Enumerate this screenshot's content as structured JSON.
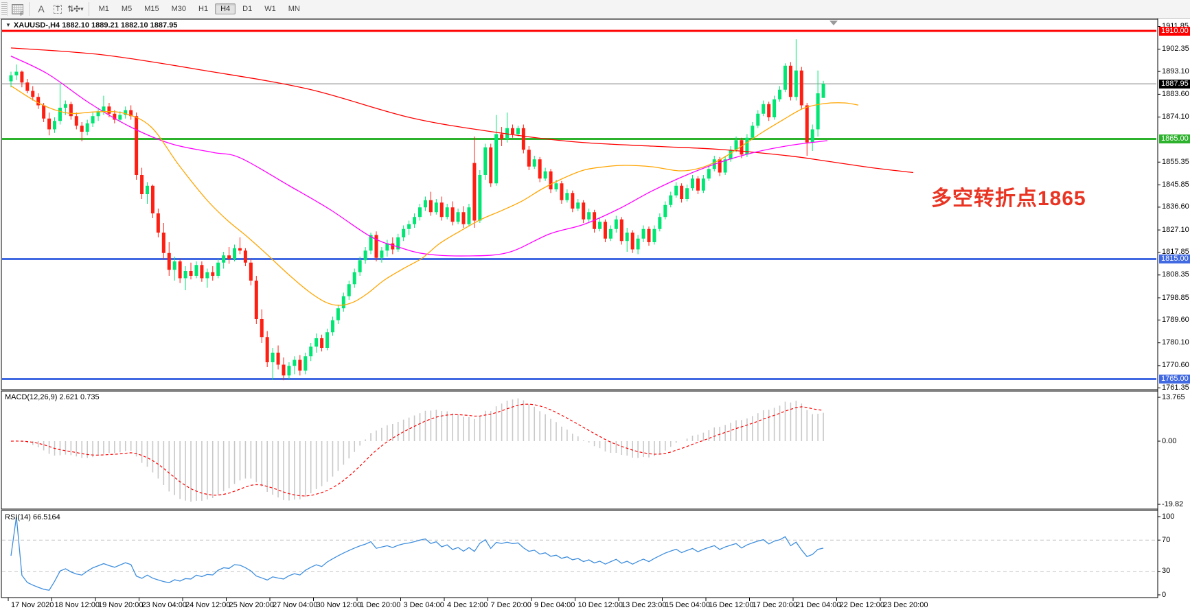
{
  "toolbar": {
    "tools": [
      {
        "name": "indicator-grid-f-icon",
        "glyph": "F"
      },
      {
        "name": "text-label-a-icon",
        "glyph": "A"
      },
      {
        "name": "text-box-t-icon",
        "glyph": "T"
      },
      {
        "name": "arrange-arrows-icon",
        "glyph": "⇅"
      },
      {
        "name": "dropdown-caret-icon",
        "glyph": "▾"
      }
    ],
    "timeframes": [
      "M1",
      "M5",
      "M15",
      "M30",
      "H1",
      "H4",
      "D1",
      "W1",
      "MN"
    ],
    "active_timeframe": "H4"
  },
  "chart": {
    "title": "XAUUSD-,H4  1882.10 1889.21 1882.10 1887.95",
    "symbol": "XAUUSD-",
    "timeframe": "H4",
    "ohlc_current": {
      "open": "1882.10",
      "high": "1889.21",
      "low": "1882.10",
      "close": "1887.95"
    },
    "current_price": "1887.95",
    "annotation": {
      "text": "多空转折点1865",
      "color": "#e93423"
    }
  },
  "macd_panel": {
    "label": "MACD(12,26,9) 2.621 0.735",
    "params": "12,26,9",
    "value_main": "2.621",
    "value_signal": "0.735",
    "scale_labels": [
      {
        "text": "13.765",
        "value": 13.765
      },
      {
        "text": "0.00",
        "value": 0
      },
      {
        "text": "-19.82",
        "value": -19.82
      }
    ]
  },
  "rsi_panel": {
    "label": "RSI(14) 66.5164",
    "period": "14",
    "value": "66.5164",
    "scale_labels": [
      {
        "text": "100",
        "value": 100
      },
      {
        "text": "70",
        "value": 70
      },
      {
        "text": "30",
        "value": 30
      },
      {
        "text": "0",
        "value": 0
      }
    ],
    "dashed_levels": [
      70,
      30
    ]
  },
  "price_axis": {
    "ticks": [
      1911.85,
      1902.35,
      1893.1,
      1883.6,
      1874.1,
      1855.35,
      1845.85,
      1836.6,
      1827.1,
      1817.85,
      1808.35,
      1798.85,
      1789.6,
      1780.1,
      1770.6,
      1761.35
    ],
    "badges": [
      {
        "text": "1910.00",
        "price": 1910.0,
        "color": "#ff0000"
      },
      {
        "text": "1887.95",
        "price": 1887.95,
        "color": "#000000"
      },
      {
        "text": "1865.00",
        "price": 1865.0,
        "color": "#2db22d"
      },
      {
        "text": "1815.00",
        "price": 1815.0,
        "color": "#4169e1"
      },
      {
        "text": "1765.00",
        "price": 1765.0,
        "color": "#4169e1"
      }
    ],
    "visible_range": [
      1761.35,
      1911.85
    ]
  },
  "time_axis": [
    "17 Nov 2020",
    "18 Nov 12:00",
    "19 Nov 20:00",
    "23 Nov 04:00",
    "24 Nov 12:00",
    "25 Nov 20:00",
    "27 Nov 04:00",
    "30 Nov 12:00",
    "1 Dec 20:00",
    "3 Dec 04:00",
    "4 Dec 12:00",
    "7 Dec 20:00",
    "9 Dec 04:00",
    "10 Dec 12:00",
    "13 Dec 23:00",
    "15 Dec 04:00",
    "16 Dec 12:00",
    "17 Dec 20:00",
    "21 Dec 04:00",
    "22 Dec 12:00",
    "23 Dec 20:00"
  ],
  "chart_data": {
    "type": "candlestick",
    "title": "XAUUSD- H4",
    "colors": {
      "bull": "#00e673",
      "bear": "#ff1e12",
      "ma_fast": "#ffa500",
      "ma_mid": "#ff00ff",
      "ma_slow": "#ff0000",
      "macd_hist": "#c8c8c8",
      "macd_signal": "#ff0000",
      "rsi": "#3e8ede",
      "hline_red": "#ff0000",
      "hline_green": "#2db22d",
      "hline_blue": "#4169e1",
      "price_line": "#808080"
    },
    "hlines": [
      {
        "price": 1910.0,
        "color": "#ff0000",
        "width": 3
      },
      {
        "price": 1887.95,
        "color": "#808080",
        "width": 1
      },
      {
        "price": 1865.0,
        "color": "#2db22d",
        "width": 3
      },
      {
        "price": 1815.0,
        "color": "#4169e1",
        "width": 3
      },
      {
        "price": 1765.0,
        "color": "#4169e1",
        "width": 3
      }
    ],
    "candles": [
      [
        1889,
        1893,
        1886.5,
        1891.5
      ],
      [
        1891.5,
        1896,
        1889.5,
        1893
      ],
      [
        1893,
        1893.5,
        1886.5,
        1888.5
      ],
      [
        1888.5,
        1890,
        1884,
        1885
      ],
      [
        1885,
        1887,
        1881,
        1882.5
      ],
      [
        1882.5,
        1884,
        1877.5,
        1879
      ],
      [
        1879,
        1880,
        1872,
        1873.5
      ],
      [
        1873.5,
        1876,
        1866.5,
        1869
      ],
      [
        1869,
        1874,
        1867.5,
        1872.5
      ],
      [
        1872.5,
        1888,
        1871,
        1878
      ],
      [
        1878,
        1881,
        1875,
        1879.5
      ],
      [
        1879.5,
        1880.5,
        1873,
        1874.5
      ],
      [
        1874.5,
        1876,
        1869,
        1870.5
      ],
      [
        1870.5,
        1872,
        1864,
        1868
      ],
      [
        1868,
        1873,
        1866.5,
        1871.5
      ],
      [
        1871.5,
        1876,
        1870,
        1874.5
      ],
      [
        1874.5,
        1878,
        1872.5,
        1876.5
      ],
      [
        1876.5,
        1883,
        1875,
        1878.5
      ],
      [
        1878.5,
        1880,
        1874,
        1875.5
      ],
      [
        1875.5,
        1877,
        1871.5,
        1873
      ],
      [
        1873,
        1876.5,
        1872,
        1875
      ],
      [
        1875,
        1878.5,
        1873.5,
        1877
      ],
      [
        1877,
        1879,
        1873,
        1874.5
      ],
      [
        1874.5,
        1876,
        1848,
        1850
      ],
      [
        1850,
        1853,
        1840,
        1842
      ],
      [
        1842,
        1847,
        1838,
        1845.5
      ],
      [
        1845.5,
        1846,
        1832,
        1834
      ],
      [
        1834,
        1836,
        1824,
        1826
      ],
      [
        1826,
        1830,
        1815,
        1817.5
      ],
      [
        1817.5,
        1822,
        1808,
        1810.5
      ],
      [
        1810.5,
        1816,
        1806,
        1814
      ],
      [
        1814,
        1815,
        1805,
        1807
      ],
      [
        1807,
        1812,
        1802,
        1810
      ],
      [
        1810,
        1813.5,
        1806.5,
        1808
      ],
      [
        1808,
        1814,
        1807,
        1812.5
      ],
      [
        1812.5,
        1814,
        1805.5,
        1807
      ],
      [
        1807,
        1811,
        1803,
        1809.5
      ],
      [
        1809.5,
        1812,
        1806,
        1808
      ],
      [
        1808,
        1815,
        1807,
        1813.5
      ],
      [
        1813.5,
        1818,
        1811,
        1816.5
      ],
      [
        1816.5,
        1820,
        1813,
        1815
      ],
      [
        1815,
        1821,
        1814,
        1819.5
      ],
      [
        1819.5,
        1824,
        1817,
        1818.5
      ],
      [
        1818.5,
        1819.5,
        1812,
        1813.5
      ],
      [
        1813.5,
        1815,
        1804,
        1806
      ],
      [
        1806,
        1808,
        1788,
        1790
      ],
      [
        1790,
        1794,
        1780,
        1782.5
      ],
      [
        1782.5,
        1785,
        1770,
        1772
      ],
      [
        1772,
        1778,
        1764.6,
        1776
      ],
      [
        1776,
        1779,
        1769,
        1771
      ],
      [
        1771,
        1774,
        1764.5,
        1766.5
      ],
      [
        1766.5,
        1772,
        1765,
        1770.5
      ],
      [
        1770.5,
        1774.5,
        1767,
        1773
      ],
      [
        1773,
        1775,
        1766.5,
        1768.5
      ],
      [
        1768.5,
        1776,
        1767,
        1774.5
      ],
      [
        1774.5,
        1780,
        1772.5,
        1778.5
      ],
      [
        1778.5,
        1784,
        1776,
        1782
      ],
      [
        1782,
        1783.5,
        1776.5,
        1778
      ],
      [
        1778,
        1786,
        1777,
        1784.5
      ],
      [
        1784.5,
        1791,
        1783,
        1789.5
      ],
      [
        1789.5,
        1796,
        1788,
        1794.5
      ],
      [
        1794.5,
        1801,
        1793,
        1799.5
      ],
      [
        1799.5,
        1806,
        1798,
        1804.5
      ],
      [
        1804.5,
        1811,
        1803,
        1809.5
      ],
      [
        1809.5,
        1816,
        1808,
        1814.5
      ],
      [
        1814.5,
        1820,
        1813,
        1818.5
      ],
      [
        1818.5,
        1826,
        1817,
        1825
      ],
      [
        1825,
        1826.5,
        1814,
        1815.5
      ],
      [
        1815.5,
        1820,
        1813.5,
        1818.5
      ],
      [
        1818.5,
        1823,
        1816,
        1821.5
      ],
      [
        1821.5,
        1824,
        1817,
        1819
      ],
      [
        1819,
        1825.5,
        1818,
        1824
      ],
      [
        1824,
        1829,
        1822.5,
        1827.5
      ],
      [
        1827.5,
        1831,
        1825,
        1829.5
      ],
      [
        1829.5,
        1834,
        1828,
        1832.5
      ],
      [
        1832.5,
        1838,
        1831,
        1836.5
      ],
      [
        1836.5,
        1841,
        1835,
        1839.5
      ],
      [
        1839.5,
        1843,
        1833,
        1834.5
      ],
      [
        1834.5,
        1840,
        1833.5,
        1838.5
      ],
      [
        1838.5,
        1841,
        1831,
        1832.5
      ],
      [
        1832.5,
        1838,
        1831.5,
        1836.5
      ],
      [
        1836.5,
        1839,
        1829,
        1830.5
      ],
      [
        1830.5,
        1836,
        1829.5,
        1834.5
      ],
      [
        1834.5,
        1837,
        1828,
        1829.5
      ],
      [
        1829.5,
        1838,
        1828.5,
        1836.5
      ],
      [
        1855,
        1866,
        1828,
        1831
      ],
      [
        1831,
        1852,
        1830,
        1850
      ],
      [
        1850,
        1863,
        1848,
        1861.5
      ],
      [
        1861.5,
        1863,
        1845,
        1846.5
      ],
      [
        1846.5,
        1875,
        1845.5,
        1867
      ],
      [
        1867,
        1870,
        1862,
        1865
      ],
      [
        1865,
        1876,
        1863.5,
        1869.5
      ],
      [
        1869.5,
        1871,
        1865.5,
        1867
      ],
      [
        1867,
        1870.5,
        1866,
        1869.5
      ],
      [
        1869.5,
        1871,
        1859,
        1860.5
      ],
      [
        1860.5,
        1862,
        1852,
        1853.5
      ],
      [
        1853.5,
        1858,
        1852.5,
        1856.5
      ],
      [
        1856.5,
        1857.5,
        1847,
        1848.5
      ],
      [
        1848.5,
        1853,
        1847.5,
        1851.5
      ],
      [
        1851.5,
        1852.5,
        1842.5,
        1844
      ],
      [
        1844,
        1848,
        1843,
        1846.5
      ],
      [
        1846.5,
        1847.5,
        1838,
        1839.5
      ],
      [
        1839.5,
        1844,
        1838.5,
        1842.5
      ],
      [
        1842.5,
        1843.5,
        1834.5,
        1836
      ],
      [
        1836,
        1840,
        1835,
        1838.5
      ],
      [
        1838.5,
        1839.5,
        1830,
        1831.5
      ],
      [
        1831.5,
        1836,
        1830.5,
        1834.5
      ],
      [
        1834.5,
        1835.5,
        1826,
        1827.5
      ],
      [
        1827.5,
        1832,
        1826.5,
        1830.5
      ],
      [
        1830.5,
        1831.5,
        1822,
        1823.5
      ],
      [
        1823.5,
        1829,
        1822.5,
        1827.5
      ],
      [
        1827.5,
        1833,
        1826,
        1831.5
      ],
      [
        1831.5,
        1832.5,
        1821,
        1822.5
      ],
      [
        1822.5,
        1828,
        1818,
        1826
      ],
      [
        1826,
        1827,
        1817.5,
        1819
      ],
      [
        1819,
        1825,
        1817,
        1823.5
      ],
      [
        1823.5,
        1829,
        1822,
        1827.5
      ],
      [
        1827.5,
        1828.5,
        1820.5,
        1822
      ],
      [
        1822,
        1829,
        1821,
        1827.5
      ],
      [
        1827.5,
        1834,
        1826.5,
        1832.5
      ],
      [
        1832.5,
        1839,
        1831.5,
        1837.5
      ],
      [
        1837.5,
        1843,
        1836.5,
        1841.5
      ],
      [
        1841.5,
        1847,
        1840.5,
        1845.5
      ],
      [
        1845.5,
        1846.5,
        1838.5,
        1840
      ],
      [
        1840,
        1846,
        1839,
        1844.5
      ],
      [
        1844.5,
        1850,
        1843.5,
        1848.5
      ],
      [
        1848.5,
        1849.5,
        1842,
        1843.5
      ],
      [
        1843.5,
        1850,
        1842.5,
        1848.5
      ],
      [
        1848.5,
        1854,
        1847.5,
        1852.5
      ],
      [
        1852.5,
        1858,
        1851.5,
        1856.5
      ],
      [
        1856.5,
        1857.5,
        1849.5,
        1851
      ],
      [
        1851,
        1858,
        1850,
        1856.5
      ],
      [
        1856.5,
        1862,
        1855.5,
        1860.5
      ],
      [
        1860.5,
        1866,
        1859.5,
        1864.5
      ],
      [
        1864.5,
        1865.5,
        1857,
        1858.5
      ],
      [
        1858.5,
        1867,
        1857.5,
        1865.5
      ],
      [
        1865.5,
        1872,
        1864.5,
        1870.5
      ],
      [
        1870.5,
        1877,
        1869.5,
        1875.5
      ],
      [
        1875.5,
        1881,
        1874.5,
        1879.5
      ],
      [
        1879.5,
        1880.5,
        1872.5,
        1874
      ],
      [
        1874,
        1883,
        1873,
        1881.5
      ],
      [
        1881.5,
        1887,
        1880.5,
        1885.5
      ],
      [
        1885.5,
        1896.5,
        1884.5,
        1895.5
      ],
      [
        1895.5,
        1897,
        1881,
        1882.5
      ],
      [
        1882.5,
        1906.5,
        1881,
        1893.5
      ],
      [
        1893.5,
        1895,
        1877.5,
        1879
      ],
      [
        1879,
        1880,
        1858,
        1863.5
      ],
      [
        1863.5,
        1871,
        1860,
        1869
      ],
      [
        1869,
        1893.5,
        1866,
        1884
      ],
      [
        1882.1,
        1889.2,
        1882.1,
        1887.95
      ]
    ],
    "ma_fast_waypoints": [
      [
        16,
        1887.1
      ],
      [
        60,
        1879.4
      ],
      [
        100,
        1875.7
      ],
      [
        140,
        1876.3
      ],
      [
        180,
        1875.7
      ],
      [
        220,
        1870
      ],
      [
        260,
        1854.3
      ],
      [
        300,
        1840
      ],
      [
        330,
        1831.4
      ],
      [
        360,
        1824.3
      ],
      [
        390,
        1816.6
      ],
      [
        420,
        1808.6
      ],
      [
        450,
        1801.4
      ],
      [
        475,
        1796.9
      ],
      [
        495,
        1795.7
      ],
      [
        515,
        1797.1
      ],
      [
        535,
        1800.6
      ],
      [
        560,
        1806.3
      ],
      [
        590,
        1811.4
      ],
      [
        615,
        1815.4
      ],
      [
        640,
        1821.4
      ],
      [
        670,
        1826.6
      ],
      [
        700,
        1831.4
      ],
      [
        730,
        1835.1
      ],
      [
        760,
        1839.1
      ],
      [
        790,
        1844.3
      ],
      [
        820,
        1848.6
      ],
      [
        850,
        1852
      ],
      [
        880,
        1853.4
      ],
      [
        910,
        1854
      ],
      [
        950,
        1853.4
      ],
      [
        990,
        1851.7
      ],
      [
        1020,
        1852.9
      ],
      [
        1050,
        1856.6
      ],
      [
        1080,
        1862
      ],
      [
        1110,
        1867.7
      ],
      [
        1140,
        1872.9
      ],
      [
        1170,
        1877.7
      ],
      [
        1200,
        1879.7
      ],
      [
        1230,
        1880
      ],
      [
        1250,
        1879.1
      ]
    ],
    "ma_mid_waypoints": [
      [
        16,
        1899.5
      ],
      [
        70,
        1892
      ],
      [
        130,
        1880
      ],
      [
        190,
        1870
      ],
      [
        250,
        1862.9
      ],
      [
        310,
        1859.4
      ],
      [
        350,
        1857.1
      ],
      [
        420,
        1845.7
      ],
      [
        480,
        1835.7
      ],
      [
        540,
        1824.3
      ],
      [
        580,
        1820
      ],
      [
        620,
        1817.1
      ],
      [
        680,
        1816.3
      ],
      [
        740,
        1817.7
      ],
      [
        800,
        1825.4
      ],
      [
        850,
        1829.4
      ],
      [
        900,
        1835.7
      ],
      [
        950,
        1843.4
      ],
      [
        1000,
        1850
      ],
      [
        1050,
        1855.4
      ],
      [
        1100,
        1859.5
      ],
      [
        1150,
        1862.3
      ],
      [
        1205,
        1864.3
      ]
    ],
    "ma_slow_waypoints": [
      [
        16,
        1902.9
      ],
      [
        150,
        1900
      ],
      [
        300,
        1893.4
      ],
      [
        450,
        1885.7
      ],
      [
        600,
        1873.7
      ],
      [
        734,
        1867.3
      ],
      [
        840,
        1863.7
      ],
      [
        950,
        1862
      ],
      [
        1050,
        1860.6
      ],
      [
        1150,
        1857.9
      ],
      [
        1205,
        1855.7
      ],
      [
        1270,
        1853
      ],
      [
        1330,
        1851
      ]
    ],
    "indicators": [
      {
        "name": "MACD",
        "params": [
          12,
          26,
          9
        ],
        "last_main": 2.621,
        "last_signal": 0.735,
        "scale": [
          -19.82,
          13.765
        ]
      },
      {
        "name": "RSI",
        "params": [
          14
        ],
        "last": 66.5164,
        "scale": [
          0,
          100
        ],
        "levels": [
          30,
          70
        ]
      }
    ]
  }
}
